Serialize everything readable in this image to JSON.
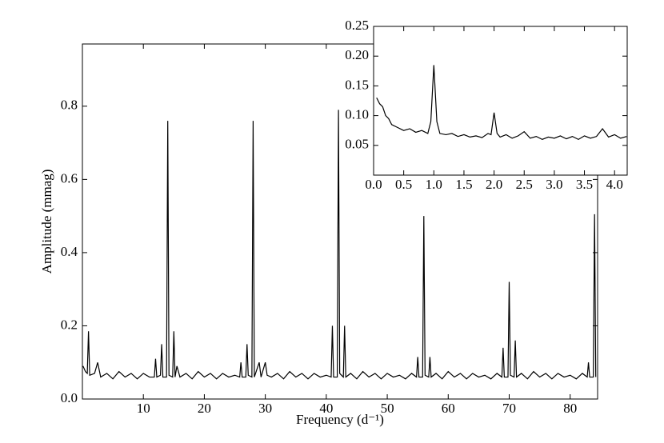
{
  "chart_data": [
    {
      "type": "line",
      "xlabel": "Frequency (d⁻¹)",
      "ylabel": "Amplitude (mmag)",
      "xlim": [
        0,
        84.5
      ],
      "ylim": [
        0,
        0.97
      ],
      "xticks": [
        10,
        20,
        30,
        40,
        50,
        60,
        70,
        80
      ],
      "yticks": [
        {
          "value": 0,
          "label": "0.0"
        },
        0.2,
        0.4,
        0.6,
        0.8
      ],
      "series": [
        {
          "color": "#000000",
          "x": [
            0.1,
            0.5,
            0.8,
            1.0,
            1.2,
            2,
            2.5,
            3,
            4,
            5,
            6,
            7,
            8,
            9,
            10,
            11,
            11.8,
            12,
            12.2,
            12.8,
            13,
            13.2,
            13.8,
            14,
            14.2,
            14.8,
            15,
            15.2,
            15.5,
            16,
            17,
            18,
            19,
            20,
            21,
            22,
            23,
            24,
            25,
            25.8,
            26,
            26.2,
            26.8,
            27,
            27.2,
            27.8,
            28,
            28.2,
            29,
            29.3,
            30,
            30.3,
            31,
            32,
            33,
            34,
            35,
            36,
            37,
            38,
            39,
            40,
            40.8,
            41,
            41.2,
            41.8,
            42,
            42.2,
            42.8,
            43,
            43.2,
            44,
            45,
            46,
            47,
            48,
            49,
            50,
            51,
            52,
            53,
            54,
            54.8,
            55,
            55.2,
            55.8,
            56,
            56.2,
            56.8,
            57,
            57.2,
            58,
            59,
            60,
            61,
            62,
            63,
            64,
            65,
            66,
            67,
            68,
            68.8,
            69,
            69.2,
            69.8,
            70,
            70.2,
            70.8,
            71,
            71.2,
            72,
            73,
            74,
            75,
            76,
            77,
            78,
            79,
            80,
            81,
            82,
            82.8,
            83,
            83.2,
            83.8,
            84,
            84.2
          ],
          "values": [
            0.09,
            0.075,
            0.07,
            0.185,
            0.065,
            0.07,
            0.1,
            0.06,
            0.07,
            0.055,
            0.075,
            0.06,
            0.07,
            0.055,
            0.07,
            0.06,
            0.06,
            0.11,
            0.06,
            0.065,
            0.15,
            0.06,
            0.06,
            0.76,
            0.065,
            0.06,
            0.185,
            0.06,
            0.09,
            0.06,
            0.07,
            0.055,
            0.075,
            0.06,
            0.07,
            0.055,
            0.07,
            0.06,
            0.065,
            0.06,
            0.1,
            0.06,
            0.06,
            0.15,
            0.065,
            0.06,
            0.76,
            0.06,
            0.1,
            0.06,
            0.1,
            0.065,
            0.06,
            0.07,
            0.055,
            0.075,
            0.06,
            0.07,
            0.055,
            0.07,
            0.06,
            0.065,
            0.06,
            0.2,
            0.06,
            0.06,
            0.79,
            0.07,
            0.06,
            0.2,
            0.06,
            0.07,
            0.055,
            0.075,
            0.06,
            0.07,
            0.055,
            0.07,
            0.06,
            0.065,
            0.055,
            0.07,
            0.06,
            0.115,
            0.06,
            0.06,
            0.5,
            0.065,
            0.06,
            0.115,
            0.06,
            0.07,
            0.055,
            0.075,
            0.06,
            0.07,
            0.055,
            0.07,
            0.06,
            0.065,
            0.055,
            0.07,
            0.06,
            0.14,
            0.06,
            0.06,
            0.32,
            0.065,
            0.06,
            0.16,
            0.06,
            0.07,
            0.055,
            0.075,
            0.06,
            0.07,
            0.055,
            0.07,
            0.06,
            0.065,
            0.055,
            0.07,
            0.06,
            0.1,
            0.06,
            0.06,
            0.505,
            0.06
          ]
        }
      ]
    },
    {
      "type": "line",
      "xlim": [
        0,
        4.21
      ],
      "ylim": [
        0,
        0.25
      ],
      "xticks": [
        {
          "value": 0,
          "label": "0.0"
        },
        0.5,
        {
          "value": 1,
          "label": "1.0"
        },
        1.5,
        {
          "value": 2,
          "label": "2.0"
        },
        2.5,
        {
          "value": 3,
          "label": "3.0"
        },
        3.5,
        {
          "value": 4,
          "label": "4.0"
        }
      ],
      "yticks": [
        0.05,
        {
          "value": 0.1,
          "label": "0.10"
        },
        0.15,
        {
          "value": 0.2,
          "label": "0.20"
        },
        0.25
      ],
      "series": [
        {
          "color": "#000000",
          "x": [
            0.05,
            0.1,
            0.15,
            0.2,
            0.25,
            0.3,
            0.4,
            0.5,
            0.6,
            0.7,
            0.8,
            0.9,
            0.95,
            1.0,
            1.05,
            1.1,
            1.2,
            1.3,
            1.4,
            1.5,
            1.6,
            1.7,
            1.8,
            1.9,
            1.95,
            2.0,
            2.05,
            2.1,
            2.2,
            2.3,
            2.4,
            2.5,
            2.6,
            2.7,
            2.8,
            2.9,
            3.0,
            3.1,
            3.2,
            3.3,
            3.4,
            3.5,
            3.6,
            3.7,
            3.8,
            3.9,
            4.0,
            4.1,
            4.2
          ],
          "values": [
            0.13,
            0.12,
            0.115,
            0.1,
            0.095,
            0.085,
            0.08,
            0.075,
            0.078,
            0.072,
            0.075,
            0.07,
            0.09,
            0.185,
            0.09,
            0.07,
            0.068,
            0.07,
            0.065,
            0.068,
            0.064,
            0.066,
            0.063,
            0.07,
            0.068,
            0.105,
            0.07,
            0.064,
            0.068,
            0.062,
            0.066,
            0.073,
            0.062,
            0.065,
            0.06,
            0.064,
            0.062,
            0.066,
            0.061,
            0.065,
            0.06,
            0.066,
            0.062,
            0.065,
            0.078,
            0.064,
            0.068,
            0.062,
            0.065
          ]
        }
      ]
    }
  ]
}
